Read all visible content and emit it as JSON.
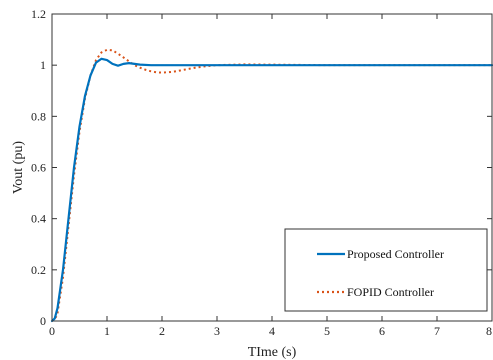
{
  "chart_data": {
    "type": "line",
    "xlabel": "TIme (s)",
    "ylabel": "Vout (pu)",
    "xlim": [
      0,
      8
    ],
    "ylim": [
      0,
      1.2
    ],
    "xticks": [
      0,
      1,
      2,
      3,
      4,
      5,
      6,
      7,
      8
    ],
    "yticks": [
      0,
      0.2,
      0.4,
      0.6,
      0.8,
      1,
      1.2
    ],
    "xtick_labels": [
      "0",
      "1",
      "2",
      "3",
      "4",
      "5",
      "6",
      "7",
      "8"
    ],
    "ytick_labels": [
      "0",
      "0.2",
      "0.4",
      "0.6",
      "0.8",
      "1",
      "1.2"
    ],
    "grid": false,
    "legend_position": "bottom-right",
    "series": [
      {
        "name": "Proposed Controller",
        "color": "#0072BD",
        "style": "solid",
        "x": [
          0,
          0.05,
          0.1,
          0.2,
          0.3,
          0.4,
          0.5,
          0.6,
          0.7,
          0.8,
          0.9,
          1.0,
          1.1,
          1.2,
          1.3,
          1.4,
          1.5,
          1.6,
          1.8,
          2.0,
          2.5,
          3.0,
          4.0,
          5.0,
          6.0,
          7.0,
          8.0
        ],
        "y": [
          0,
          0.01,
          0.05,
          0.2,
          0.4,
          0.6,
          0.76,
          0.88,
          0.96,
          1.01,
          1.025,
          1.02,
          1.005,
          0.998,
          1.005,
          1.008,
          1.005,
          1.002,
          1.0,
          1.0,
          1.0,
          1.0,
          1.0,
          1.0,
          1.0,
          1.0,
          1.0
        ]
      },
      {
        "name": "FOPID Controller",
        "color": "#D95319",
        "style": "dotted",
        "x": [
          0,
          0.05,
          0.1,
          0.2,
          0.3,
          0.4,
          0.5,
          0.6,
          0.7,
          0.8,
          0.9,
          1.0,
          1.1,
          1.2,
          1.3,
          1.4,
          1.5,
          1.6,
          1.7,
          1.8,
          1.9,
          2.0,
          2.2,
          2.4,
          2.6,
          2.8,
          3.0,
          3.5,
          4.0,
          5.0,
          6.0,
          7.0,
          8.0
        ],
        "y": [
          0,
          0.005,
          0.03,
          0.17,
          0.37,
          0.57,
          0.74,
          0.87,
          0.96,
          1.02,
          1.05,
          1.06,
          1.058,
          1.045,
          1.03,
          1.015,
          1.0,
          0.99,
          0.982,
          0.976,
          0.972,
          0.971,
          0.974,
          0.982,
          0.99,
          0.996,
          1.0,
          1.003,
          1.002,
          1.0,
          1.0,
          1.0,
          1.0
        ]
      }
    ]
  }
}
